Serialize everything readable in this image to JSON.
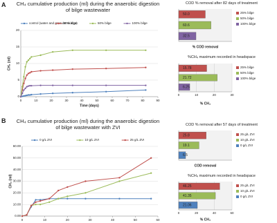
{
  "panel_labels": [
    "A",
    "B"
  ],
  "chart_data": [
    {
      "type": "line",
      "title": "CH₄ cumulative production (ml) during the anaerobic digestion of bilge wastewater",
      "x_label": "Time (days)",
      "y_label": "CH₄ (ml)",
      "x": [
        0,
        1,
        2,
        3,
        4,
        5,
        6,
        7,
        13,
        21,
        34,
        56,
        82
      ],
      "series": [
        {
          "name": "control (water and granular sludge)",
          "color": "#4f81bd",
          "values": [
            0,
            0.1,
            0.2,
            0.3,
            0.4,
            0.5,
            0.5,
            0.6,
            0.8,
            1,
            1.2,
            1.5,
            2
          ]
        },
        {
          "name": "25% bilge",
          "color": "#c0504d",
          "values": [
            0,
            2,
            4,
            5.5,
            6.5,
            7,
            7.2,
            7.5,
            7.8,
            8,
            8.3,
            8.5,
            8.8
          ]
        },
        {
          "name": "50% bilge",
          "color": "#9bbb59",
          "values": [
            0,
            3,
            6,
            9,
            10.5,
            11,
            11.5,
            12,
            12.5,
            13.5,
            14,
            14,
            14
          ]
        },
        {
          "name": "100% bilge",
          "color": "#8064a2",
          "values": [
            0,
            1,
            2,
            2.5,
            3,
            3.2,
            3.3,
            3.3,
            3.4,
            3.4,
            3.4,
            3.4,
            3.4
          ]
        }
      ],
      "xlim": [
        0,
        90
      ],
      "xticks": [
        0,
        10,
        20,
        30,
        40,
        50,
        60,
        70,
        80,
        90
      ],
      "ylim": [
        0,
        20
      ],
      "yticks": [
        0,
        5,
        10,
        15,
        20
      ],
      "grid": true
    },
    {
      "type": "hbar",
      "title": "COD % removal after 82 days of treatment",
      "x_label": "% COD removal",
      "categories": [
        "25% bilge",
        "50% bilge",
        "100% bilge"
      ],
      "values": [
        50.0,
        60.6,
        32.5
      ],
      "value_labels": [
        "50.0",
        "60.6",
        "32.5"
      ],
      "colors": [
        "#c0504d",
        "#9bbb59",
        "#8064a2"
      ],
      "xlim": [
        0,
        100
      ]
    },
    {
      "type": "hbar",
      "title": "%CH₄ maximum recorded in headspace",
      "x_label": "% CH₄",
      "categories": [
        "25% bilge",
        "50% bilge",
        "100% bilge"
      ],
      "values": [
        15.78,
        21.72,
        6.25
      ],
      "colors": [
        "#c0504d",
        "#9bbb59",
        "#8064a2"
      ],
      "xlim": [
        0,
        30
      ],
      "xticks": [
        0,
        10,
        20,
        30
      ]
    },
    {
      "type": "line",
      "title": "CH₄ cumulative production (ml) during the anaerobic digestion of bilge wastewater with ZVI",
      "y_label": "CH₄ (ml)",
      "x": [
        0,
        2,
        4,
        6,
        8,
        12,
        16,
        20,
        28,
        43,
        57
      ],
      "series": [
        {
          "name": "0 g/L ZVI",
          "color": "#4f81bd",
          "values": [
            0,
            1,
            8,
            14,
            14,
            15,
            15,
            15,
            15,
            15,
            15
          ]
        },
        {
          "name": "10 g/L ZVI",
          "color": "#9bbb59",
          "values": [
            0,
            1,
            9,
            10,
            10,
            12,
            15,
            17,
            20,
            30,
            37
          ]
        },
        {
          "name": "25 g/L ZVI",
          "color": "#c0504d",
          "values": [
            0,
            1,
            9,
            12,
            13,
            15,
            22,
            25,
            30,
            33,
            50
          ]
        }
      ],
      "xlim": [
        0,
        60
      ],
      "xticks": [
        0,
        10,
        20,
        30,
        40,
        50,
        60
      ],
      "ylim": [
        0,
        60
      ],
      "yticks": [
        {
          "value": 0,
          "label": "0.00"
        },
        {
          "value": 10,
          "label": "10.00"
        },
        {
          "value": 20,
          "label": "20.00"
        },
        {
          "value": 30,
          "label": "30.00"
        },
        {
          "value": 40,
          "label": "40.00"
        },
        {
          "value": 50,
          "label": "50.00"
        },
        {
          "value": 60,
          "label": "60.00"
        }
      ],
      "grid": true
    },
    {
      "type": "hbar",
      "title": "COD % removal after 57 days of treatment",
      "x_label": "COD removal",
      "categories": [
        "25 g/L ZVI",
        "10 g/L ZVI",
        "0 g/L ZVI"
      ],
      "values": [
        25.8,
        19.1,
        6.5
      ],
      "colors": [
        "#c0504d",
        "#9bbb59",
        "#4f81bd"
      ],
      "xlim": [
        0,
        50
      ]
    },
    {
      "type": "hbar",
      "title": "%CH₄ maximum recorded in headspace",
      "x_label": "% CH₄",
      "categories": [
        "25 g/L ZVI",
        "10 g/L ZVI",
        "0 g/L ZVI"
      ],
      "values": [
        46.25,
        41.35,
        21.06
      ],
      "colors": [
        "#c0504d",
        "#9bbb59",
        "#4f81bd"
      ],
      "xlim": [
        0,
        60
      ],
      "xticks": [
        0,
        20,
        40,
        60
      ]
    }
  ]
}
